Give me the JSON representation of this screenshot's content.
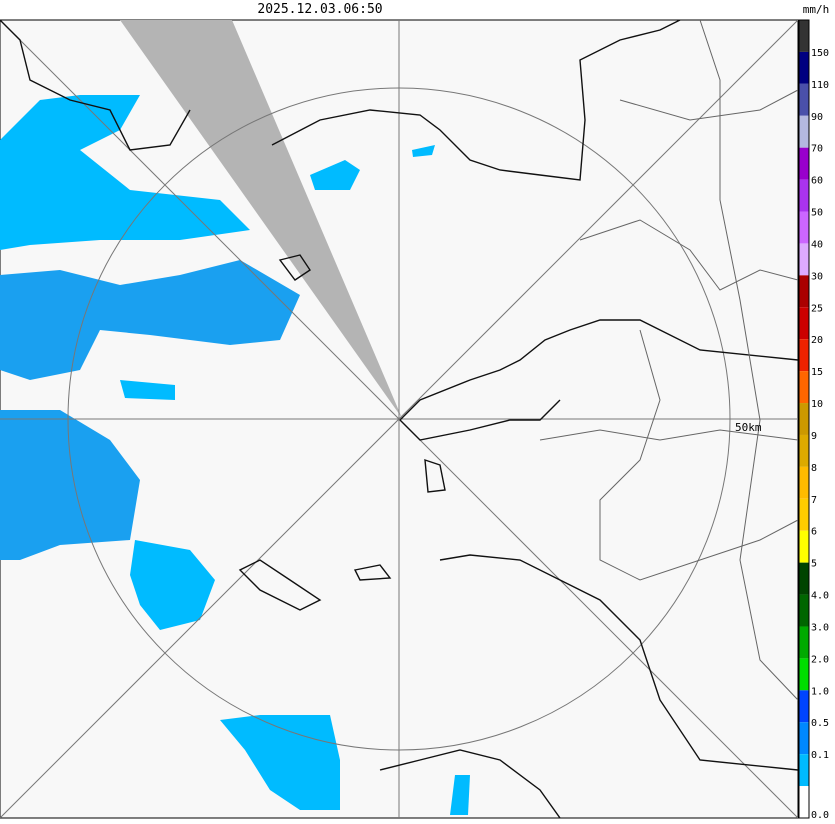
{
  "header": {
    "timestamp": "2025.12.03.06:50"
  },
  "map": {
    "range_label": "50km"
  },
  "legend": {
    "unit": "mm/h",
    "colors": [
      "#333333",
      "#000080",
      "#4a50aa",
      "#b4b8e0",
      "#9900cc",
      "#aa33ee",
      "#cc66ff",
      "#ddaaff",
      "#aa0000",
      "#cc0000",
      "#ee2200",
      "#ff6600",
      "#cc9900",
      "#ddaa00",
      "#ffbb00",
      "#ffcc00",
      "#ffff00",
      "#004400",
      "#006600",
      "#00aa00",
      "#00dd00",
      "#0044ff",
      "#0088ff",
      "#00bbff",
      "#ffffff"
    ],
    "labels": [
      "150",
      "110",
      "90",
      "70",
      "60",
      "50",
      "40",
      "30",
      "25",
      "20",
      "15",
      "10",
      "9",
      "8",
      "7",
      "6",
      "5",
      "4.0",
      "3.0",
      "2.0",
      "1.0",
      "0.5",
      "0.1",
      "0.0"
    ]
  }
}
